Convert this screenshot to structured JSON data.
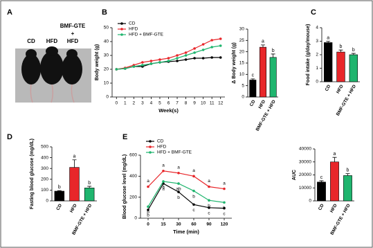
{
  "photo": {
    "label": "A",
    "captions": [
      "CD",
      "HFD",
      "BMF-GTE",
      "+",
      "HFD"
    ]
  },
  "chart_data": [
    {
      "type": "line",
      "label": "B",
      "y_label": "Body weight (g)",
      "x_label": "Week(s)",
      "x": [
        0,
        1,
        2,
        3,
        4,
        5,
        6,
        7,
        8,
        9,
        10,
        11,
        12
      ],
      "xlim": [
        -0.5,
        12.5
      ],
      "xticks": [
        0,
        1,
        2,
        3,
        4,
        5,
        6,
        7,
        8,
        9,
        10,
        11,
        12
      ],
      "ylim": [
        0,
        50
      ],
      "yticks": [
        0,
        10,
        20,
        30,
        40,
        50
      ],
      "series": [
        {
          "name": "CD",
          "color": "#000000",
          "values": [
            20,
            20.5,
            22,
            22,
            24,
            25,
            25.5,
            26,
            27,
            28,
            28,
            28.5,
            28.5
          ]
        },
        {
          "name": "HFD",
          "color": "#e8262a",
          "values": [
            20,
            21,
            23,
            25,
            26,
            27,
            28,
            30,
            32,
            35,
            38,
            41,
            42
          ]
        },
        {
          "name": "HFD + BMF-GTE",
          "color": "#1fb56e",
          "values": [
            20,
            20.5,
            22,
            23,
            24,
            25,
            26,
            28,
            30,
            32,
            34,
            36,
            37
          ]
        }
      ]
    },
    {
      "type": "bar",
      "label": "",
      "y_label": "Δ Body weight (g)",
      "categories": [
        "CD",
        "HFD",
        "BMF-GTE + HFD"
      ],
      "values": [
        7.5,
        22,
        17.5
      ],
      "errors": [
        0.5,
        1,
        1.5
      ],
      "letters": [
        "c",
        "a",
        "b"
      ],
      "colors": [
        "#000000",
        "#e8262a",
        "#1fb56e"
      ],
      "ylim": [
        0,
        30
      ],
      "yticks": [
        0,
        5,
        10,
        15,
        20,
        25,
        30
      ]
    },
    {
      "type": "bar",
      "label": "C",
      "y_label": "Food intake (g/day/mouse)",
      "categories": [
        "CD",
        "HFD",
        "BMF-GTE + HFD"
      ],
      "values": [
        2.9,
        2.2,
        2.0
      ],
      "errors": [
        0.1,
        0.15,
        0.1
      ],
      "letters": [
        "a",
        "b",
        "b"
      ],
      "colors": [
        "#000000",
        "#e8262a",
        "#1fb56e"
      ],
      "ylim": [
        0,
        4
      ],
      "yticks": [
        0,
        1,
        2,
        3,
        4
      ]
    },
    {
      "type": "bar",
      "label": "D",
      "y_label": "Fasting blood glucose (mg/dL)",
      "categories": [
        "CD",
        "HFD",
        "BMF-GTE + HFD"
      ],
      "values": [
        90,
        310,
        120
      ],
      "errors": [
        5,
        70,
        15
      ],
      "letters": [
        "b",
        "a",
        "b"
      ],
      "colors": [
        "#000000",
        "#e8262a",
        "#1fb56e"
      ],
      "ylim": [
        0,
        500
      ],
      "yticks": [
        0,
        100,
        200,
        300,
        400,
        500
      ]
    },
    {
      "type": "line",
      "label": "E",
      "y_label": "Blood glucose level (mg/dL)",
      "x_label": "Time (min)",
      "categories": [
        "0",
        "15",
        "30",
        "60",
        "90",
        "120"
      ],
      "ylim": [
        0,
        600
      ],
      "yticks": [
        0,
        200,
        400,
        600
      ],
      "series": [
        {
          "name": "CD",
          "color": "#000000",
          "values": [
            80,
            330,
            250,
            130,
            100,
            95
          ],
          "letters": [
            "b",
            "a",
            "b",
            "c",
            "c",
            "c"
          ]
        },
        {
          "name": "HFD",
          "color": "#e8262a",
          "values": [
            300,
            450,
            430,
            400,
            300,
            280
          ],
          "letters": [
            "a",
            "a",
            "a",
            "a",
            "a",
            "a"
          ]
        },
        {
          "name": "HFD + BMF-GTE",
          "color": "#1fb56e",
          "values": [
            110,
            350,
            330,
            260,
            170,
            150
          ],
          "letters": [
            "b",
            "a",
            "ab",
            "b",
            "b",
            "b"
          ]
        }
      ]
    },
    {
      "type": "bar",
      "label": "",
      "y_label": "AUC",
      "categories": [
        "CD",
        "HFD",
        "BMF-GTE + HFD"
      ],
      "values": [
        14500,
        30000,
        19500
      ],
      "errors": [
        1000,
        3500,
        1500
      ],
      "letters": [
        "c",
        "a",
        "b"
      ],
      "colors": [
        "#000000",
        "#e8262a",
        "#1fb56e"
      ],
      "ylim": [
        0,
        40000
      ],
      "yticks": [
        0,
        10000,
        20000,
        30000,
        40000
      ]
    }
  ]
}
